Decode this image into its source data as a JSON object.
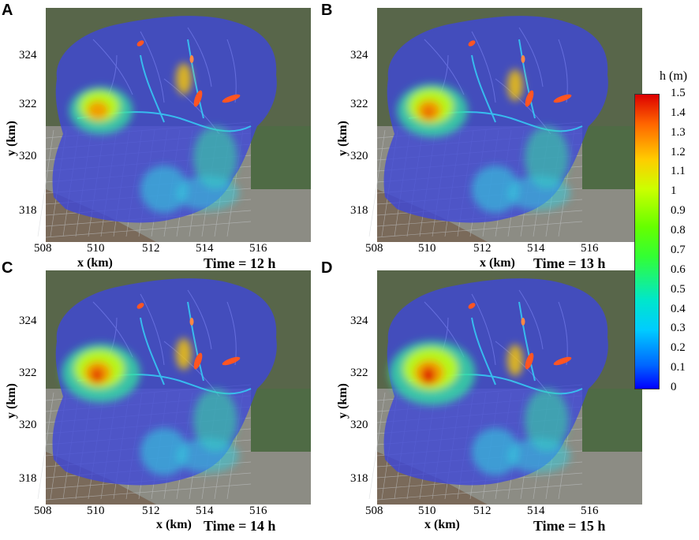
{
  "chart_data": {
    "type": "heatmap",
    "colorbar": {
      "title": "h (m)",
      "ticks": [
        "0",
        "0.1",
        "0.2",
        "0.3",
        "0.4",
        "0.5",
        "0.6",
        "0.7",
        "0.8",
        "0.9",
        "1",
        "1.1",
        "1.2",
        "1.3",
        "1.4",
        "1.5"
      ],
      "range": [
        0,
        1.5
      ],
      "colors": [
        "#0000ff",
        "#00ccff",
        "#33ff33",
        "#ccff00",
        "#ffcc00",
        "#ff6600",
        "#dd0000"
      ]
    },
    "panels": [
      {
        "letter": "A",
        "time": "Time = 12 h",
        "xlabel": "x (km)",
        "ylabel": "y (km)",
        "xticks": [
          "508",
          "510",
          "512",
          "514",
          "516"
        ],
        "yticks": [
          "324",
          "322",
          "320",
          "318"
        ],
        "xlim": [
          508,
          517.5
        ],
        "ylim": [
          316.8,
          325.3
        ]
      },
      {
        "letter": "B",
        "time": "Time = 13 h",
        "xlabel": "x (km)",
        "ylabel": "y (km)",
        "xticks": [
          "508",
          "510",
          "512",
          "514",
          "516"
        ],
        "yticks": [
          "324",
          "322",
          "320",
          "318"
        ],
        "xlim": [
          508,
          517.5
        ],
        "ylim": [
          316.8,
          325.3
        ]
      },
      {
        "letter": "C",
        "time": "Time = 14 h",
        "xlabel": "x (km)",
        "ylabel": "y (km)",
        "xticks": [
          "508",
          "510",
          "512",
          "514",
          "516"
        ],
        "yticks": [
          "324",
          "322",
          "320",
          "318"
        ],
        "xlim": [
          508,
          517.5
        ],
        "ylim": [
          316.8,
          325.3
        ]
      },
      {
        "letter": "D",
        "time": "Time = 15 h",
        "xlabel": "x (km)",
        "ylabel": "y (km)",
        "xticks": [
          "508",
          "510",
          "512",
          "514",
          "516"
        ],
        "yticks": [
          "324",
          "322",
          "320",
          "318"
        ],
        "xlim": [
          508,
          517.5
        ],
        "ylim": [
          316.8,
          325.3
        ]
      }
    ]
  }
}
